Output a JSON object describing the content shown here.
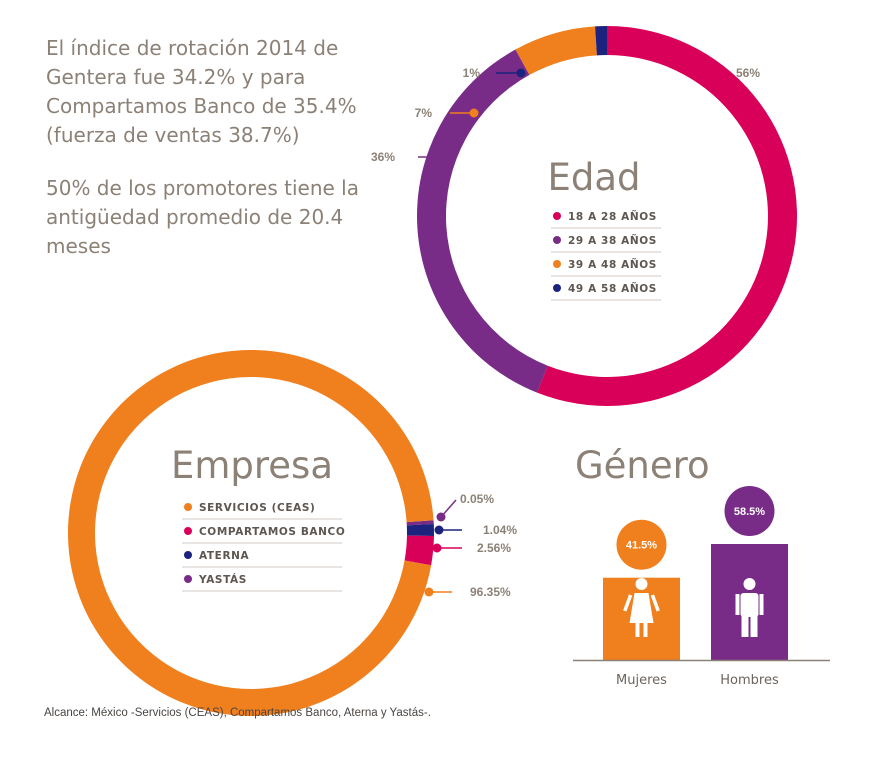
{
  "intro": {
    "paragraph1": "El índice de rotación 2014 de Gentera fue 34.2% y para Compartamos Banco de 35.4% (fuerza de ventas 38.7%)",
    "paragraph2": "50% de los promotores tiene la antigüedad promedio de 20.4 meses"
  },
  "footnote": "Alcance: México -Servicios (CEAS), Compartamos Banco, Aterna y Yastás-.",
  "colors": {
    "pink": "#d9005a",
    "purple": "#782c87",
    "orange": "#f07f1e",
    "navy": "#1b237f",
    "text": "#8c8177"
  },
  "chart_data": [
    {
      "type": "pie",
      "title": "Edad",
      "slices": [
        {
          "name": "18 A 28 AÑOS",
          "value": 56,
          "label": "56%",
          "color": "#d9005a"
        },
        {
          "name": "29 A 38 AÑOS",
          "value": 36,
          "label": "36%",
          "color": "#782c87"
        },
        {
          "name": "39 A 48 AÑOS",
          "value": 7,
          "label": "7%",
          "color": "#f07f1e"
        },
        {
          "name": "49 A 58 AÑOS",
          "value": 1,
          "label": "1%",
          "color": "#1b237f"
        }
      ]
    },
    {
      "type": "pie",
      "title": "Empresa",
      "slices": [
        {
          "name": "SERVICIOS (CEAS)",
          "value": 96.35,
          "label": "96.35%",
          "color": "#f07f1e"
        },
        {
          "name": "COMPARTAMOS BANCO",
          "value": 2.56,
          "label": "2.56%",
          "color": "#d9005a"
        },
        {
          "name": "ATERNA",
          "value": 1.04,
          "label": "1.04%",
          "color": "#1b237f"
        },
        {
          "name": "YASTÁS",
          "value": 0.05,
          "label": "0.05%",
          "color": "#782c87"
        }
      ]
    },
    {
      "type": "bar",
      "title": "Género",
      "categories": [
        "Mujeres",
        "Hombres"
      ],
      "values": [
        41.5,
        58.5
      ],
      "value_labels": [
        "41.5%",
        "58.5%"
      ],
      "colors": [
        "#f07f1e",
        "#782c87"
      ],
      "icons": [
        "woman-icon",
        "man-icon"
      ]
    }
  ]
}
